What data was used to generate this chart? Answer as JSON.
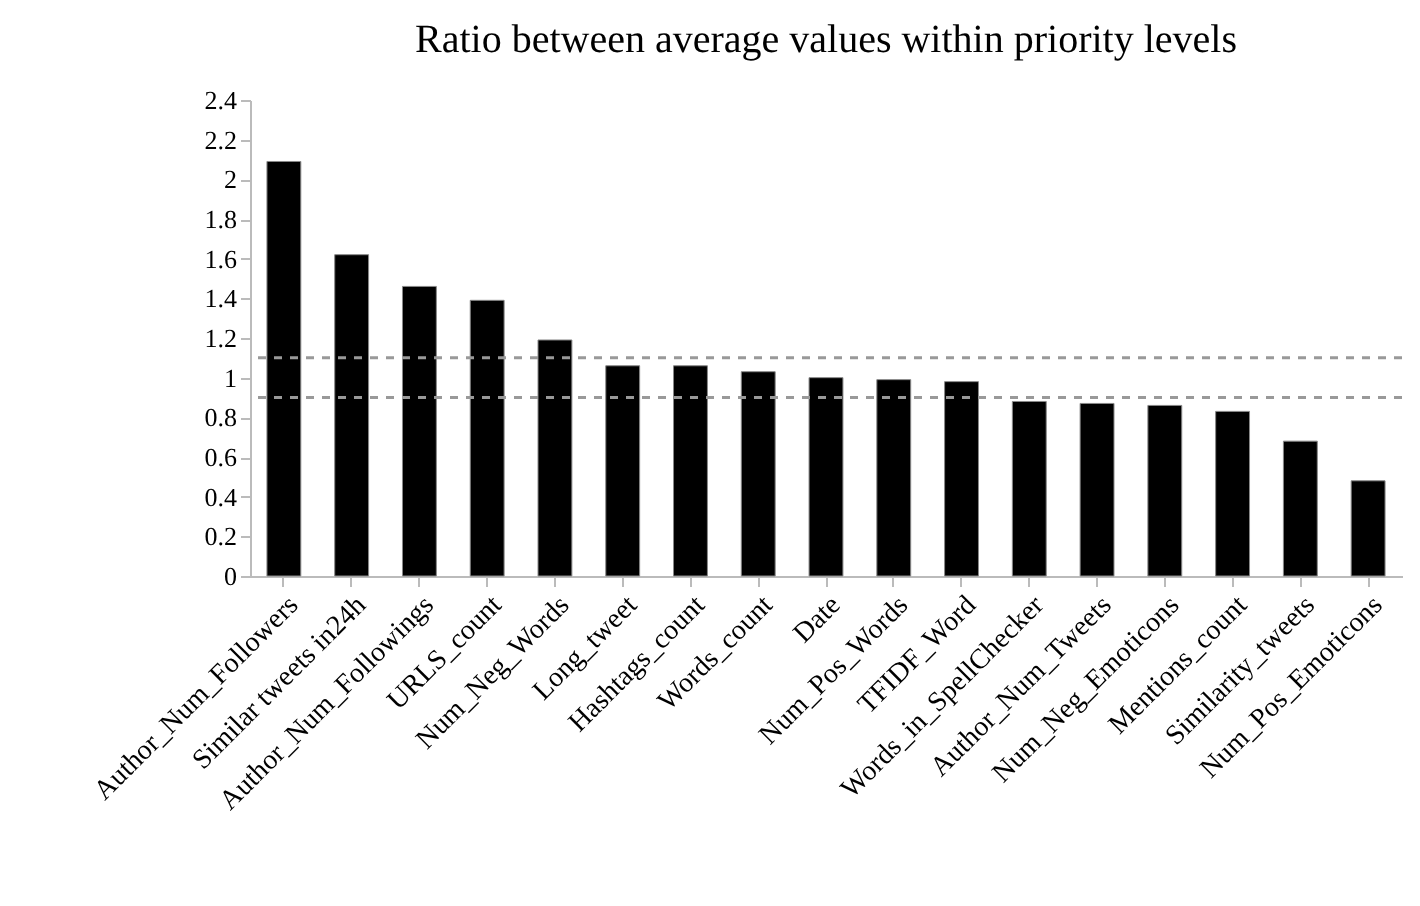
{
  "chart_data": {
    "type": "bar",
    "title": "Ratio between average values within priority levels",
    "categories": [
      "Author_Num_Followers",
      "Similar tweets in24h",
      "Author_Num_Followings",
      "URLS_count",
      "Num_Neg_Words",
      "Long_tweet",
      "Hashtags_count",
      "Words_count",
      "Date",
      "Num_Pos_Words",
      "TFIDF_Word",
      "Words_in_SpellChecker",
      "Author_Num_Tweets",
      "Num_Neg_Emoticons",
      "Mentions_count",
      "Similarity_tweets",
      "Num_Pos_Emoticons"
    ],
    "values": [
      2.09,
      1.62,
      1.46,
      1.39,
      1.19,
      1.06,
      1.06,
      1.03,
      1.0,
      0.99,
      0.98,
      0.88,
      0.87,
      0.86,
      0.83,
      0.68,
      0.48
    ],
    "color": "#000000",
    "ylim": [
      0,
      2.4
    ],
    "yticks": [
      0,
      0.2,
      0.4,
      0.6,
      0.8,
      1,
      1.2,
      1.4,
      1.6,
      1.8,
      2,
      2.2,
      2.4
    ],
    "grid": false,
    "ref_lines": [
      {
        "axis": "y",
        "value": 1.1,
        "line_style": "dashed",
        "color": "#999999"
      },
      {
        "axis": "y",
        "value": 0.9,
        "line_style": "dashed",
        "color": "#999999"
      }
    ]
  }
}
